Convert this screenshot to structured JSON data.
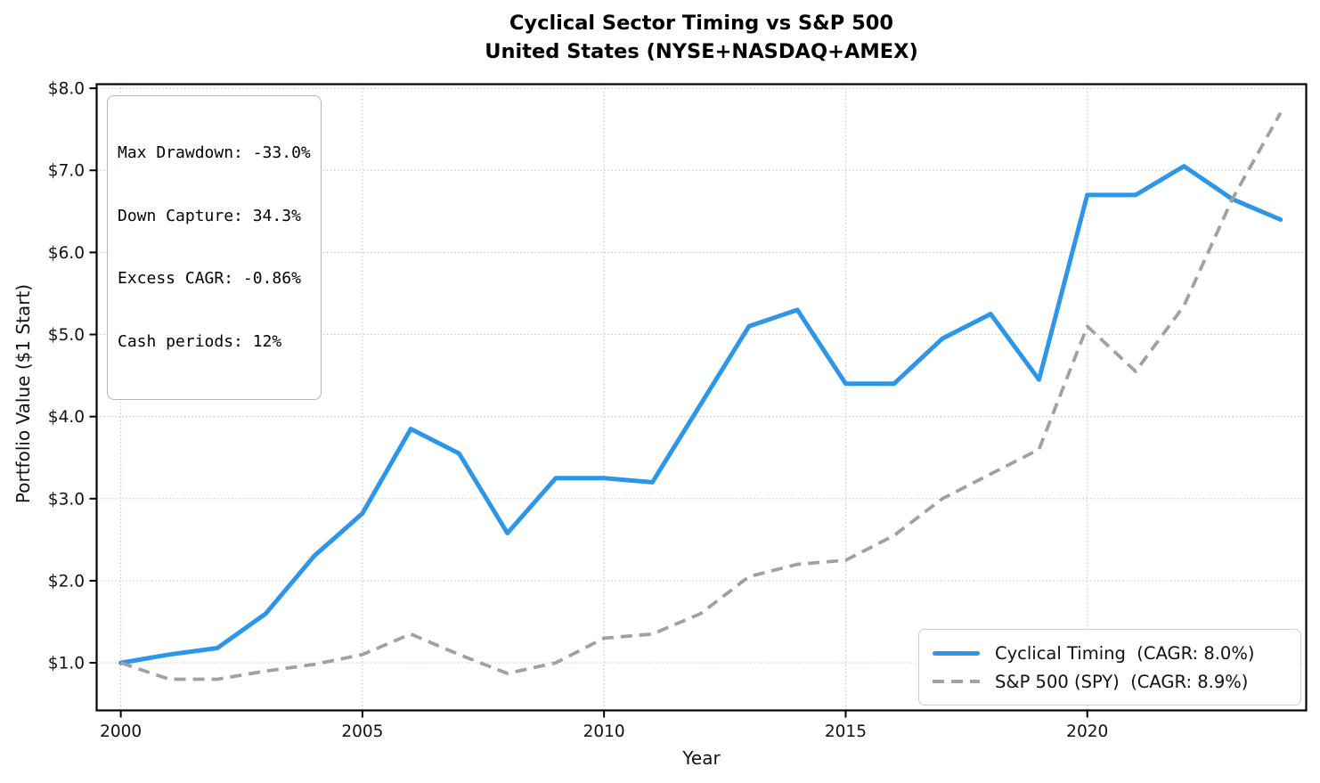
{
  "title": {
    "line1": "Cyclical Sector Timing vs S&P 500",
    "line2": "United States (NYSE+NASDAQ+AMEX)"
  },
  "stats_box": {
    "lines": [
      "Max Drawdown: -33.0%",
      "Down Capture: 34.3%",
      "Excess CAGR: -0.86%",
      "Cash periods: 12%"
    ]
  },
  "legend": {
    "entries": [
      {
        "label": "Cyclical Timing  (CAGR: 8.0%)"
      },
      {
        "label": "S&P 500 (SPY)  (CAGR: 8.9%)"
      }
    ]
  },
  "axes": {
    "xlabel": "Year",
    "ylabel": "Portfolio Value ($1 Start)"
  },
  "colors": {
    "cyclical_line": "#2D96E9",
    "sp500_line": "#A1A1A1",
    "grid": "#c9c9c9",
    "spine": "#000000",
    "tick_text": "#111111"
  },
  "chart_data": {
    "type": "line",
    "title": "Cyclical Sector Timing vs S&P 500 — United States (NYSE+NASDAQ+AMEX)",
    "xlabel": "Year",
    "ylabel": "Portfolio Value ($1 Start)",
    "x": [
      2000,
      2001,
      2002,
      2003,
      2004,
      2005,
      2006,
      2007,
      2008,
      2009,
      2010,
      2011,
      2012,
      2013,
      2014,
      2015,
      2016,
      2017,
      2018,
      2019,
      2020,
      2021,
      2022,
      2023,
      2024
    ],
    "series": [
      {
        "name": "Cyclical Timing",
        "cagr_label": "CAGR: 8.0%",
        "color": "#2D96E9",
        "style": "solid",
        "width": 5,
        "values": [
          1.0,
          1.1,
          1.18,
          1.6,
          2.3,
          2.82,
          3.85,
          3.55,
          2.58,
          3.25,
          3.25,
          3.2,
          4.15,
          5.1,
          5.3,
          4.4,
          4.4,
          4.95,
          5.25,
          4.45,
          6.7,
          6.7,
          7.05,
          6.65,
          6.4
        ]
      },
      {
        "name": "S&P 500 (SPY)",
        "cagr_label": "CAGR: 8.9%",
        "color": "#A1A1A1",
        "style": "dashed",
        "width": 3.8,
        "values": [
          1.0,
          0.8,
          0.8,
          0.9,
          0.98,
          1.1,
          1.35,
          1.1,
          0.87,
          1.0,
          1.3,
          1.35,
          1.6,
          2.05,
          2.2,
          2.25,
          2.55,
          3.0,
          3.3,
          3.6,
          5.1,
          4.55,
          5.35,
          6.65,
          7.7
        ]
      }
    ],
    "xticks": {
      "values": [
        2000,
        2005,
        2010,
        2015,
        2020
      ],
      "labels": [
        "2000",
        "2005",
        "2010",
        "2015",
        "2020"
      ]
    },
    "yticks": {
      "values": [
        1,
        2,
        3,
        4,
        5,
        6,
        7,
        8
      ],
      "labels": [
        "$1.0",
        "$2.0",
        "$3.0",
        "$4.0",
        "$5.0",
        "$6.0",
        "$7.0",
        "$8.0"
      ]
    },
    "xlim": [
      1999.5,
      2024.53
    ],
    "ylim": [
      0.42,
      8.05
    ],
    "grid": "dotted",
    "legend_position": "lower right"
  }
}
